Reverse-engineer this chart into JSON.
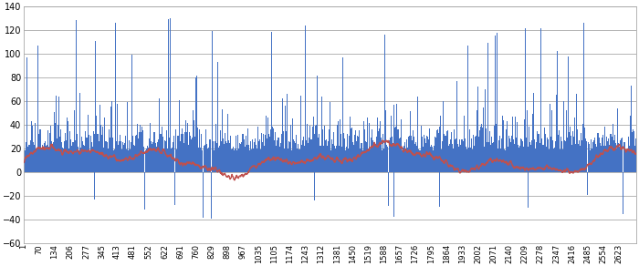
{
  "ylim": [
    -60,
    140
  ],
  "yticks": [
    -60,
    -40,
    -20,
    0,
    20,
    40,
    60,
    80,
    100,
    120,
    140
  ],
  "xtick_labels": [
    "1",
    "70",
    "134",
    "206",
    "277",
    "345",
    "413",
    "481",
    "552",
    "622",
    "691",
    "760",
    "829",
    "898",
    "967",
    "1035",
    "1105",
    "1174",
    "1243",
    "1312",
    "1381",
    "1450",
    "1519",
    "1588",
    "1657",
    "1726",
    "1795",
    "1864",
    "1933",
    "2002",
    "2071",
    "2140",
    "2209",
    "2278",
    "2347",
    "2416",
    "2485",
    "2554",
    "2623"
  ],
  "n_points": 2700,
  "blue_color": "#4472C4",
  "red_color": "#C0504D",
  "bg_color": "#ffffff",
  "grid_color": "#a8a8a8",
  "fig_width": 7.0,
  "fig_height": 2.92,
  "dpi": 100
}
